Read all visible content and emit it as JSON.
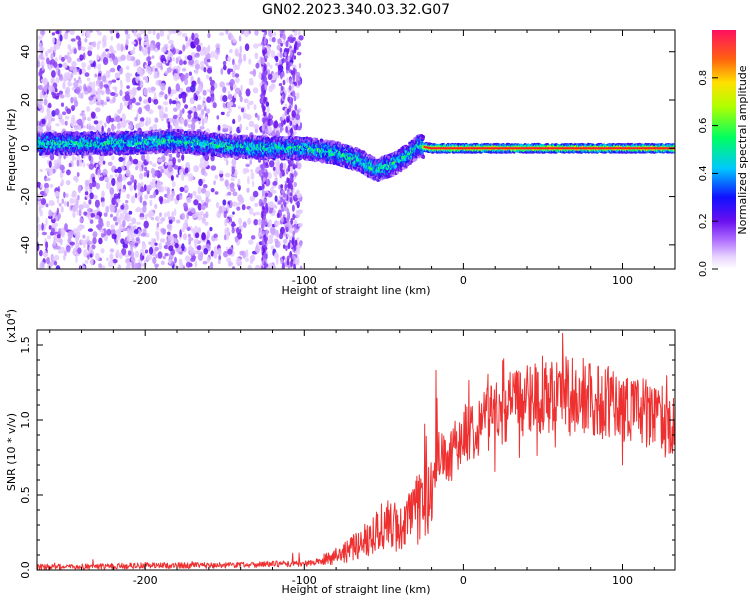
{
  "title": "GN02.2023.340.03.32.G07",
  "colors": {
    "series": "#ee3030",
    "axis": "#000000",
    "background": "#ffffff"
  },
  "chart_data": [
    {
      "type": "heatmap",
      "title": "",
      "xlabel": "Height of straight line (km)",
      "ylabel": "Frequency (Hz)",
      "xlim": [
        -268,
        133
      ],
      "ylim": [
        -50,
        49
      ],
      "xticks": [
        -200,
        -100,
        0,
        100
      ],
      "xtick_labels": [
        "-200",
        "-100",
        "0",
        "100"
      ],
      "yticks": [
        -40,
        -20,
        0,
        20,
        40
      ],
      "ytick_labels": [
        "-40",
        "-20",
        "0",
        "20",
        "40"
      ],
      "colorbar": {
        "label": "Normalized spectral amplitude",
        "range": [
          0,
          1
        ],
        "ticks": [
          0.0,
          0.2,
          0.4,
          0.6,
          0.8
        ],
        "tick_labels": [
          "0.0",
          "0.2",
          "0.4",
          "0.6",
          "0.8"
        ],
        "colormap": [
          "#ffffff",
          "#d9b8ff",
          "#8a2be2",
          "#2010ff",
          "#00e5ff",
          "#00ff40",
          "#ffff00",
          "#ff3030"
        ]
      },
      "ridge": {
        "x": [
          -268,
          -220,
          -180,
          -150,
          -120,
          -100,
          -80,
          -65,
          -55,
          -45,
          -35,
          -28,
          -20,
          0,
          50,
          100,
          133
        ],
        "y": [
          2,
          2,
          3,
          1,
          0,
          0,
          -2,
          -5,
          -9,
          -7,
          -3,
          1,
          0,
          0,
          0,
          0,
          0
        ]
      }
    },
    {
      "type": "line",
      "title": "",
      "xlabel": "Height of straight line (km)",
      "ylabel": "SNR (10 * v/v)",
      "y_multiplier": "(x10",
      "y_multiplier_exp": "4",
      "y_multiplier_close": ")",
      "xlim": [
        -268,
        133
      ],
      "ylim": [
        0,
        1.6
      ],
      "xticks": [
        -200,
        -100,
        0,
        100
      ],
      "xtick_labels": [
        "-200",
        "-100",
        "0",
        "100"
      ],
      "yticks": [
        0.0,
        0.5,
        1.0,
        1.5
      ],
      "ytick_labels": [
        "0.0",
        "0.5",
        "1.0",
        "1.5"
      ],
      "series": [
        {
          "x": [
            -268,
            -240,
            -200,
            -160,
            -120,
            -100,
            -90,
            -80,
            -70,
            -60,
            -50,
            -40,
            -30,
            -25,
            -20,
            -15,
            -10,
            -5,
            0,
            10,
            20,
            30,
            40,
            50,
            60,
            70,
            80,
            90,
            100,
            110,
            120,
            133
          ],
          "values": [
            0.02,
            0.02,
            0.03,
            0.03,
            0.04,
            0.04,
            0.06,
            0.1,
            0.14,
            0.22,
            0.3,
            0.28,
            0.38,
            0.45,
            0.58,
            0.8,
            0.7,
            0.82,
            0.9,
            0.98,
            1.05,
            1.1,
            1.15,
            1.17,
            1.18,
            1.17,
            1.15,
            1.12,
            1.1,
            1.07,
            1.02,
            0.98
          ]
        }
      ]
    }
  ]
}
